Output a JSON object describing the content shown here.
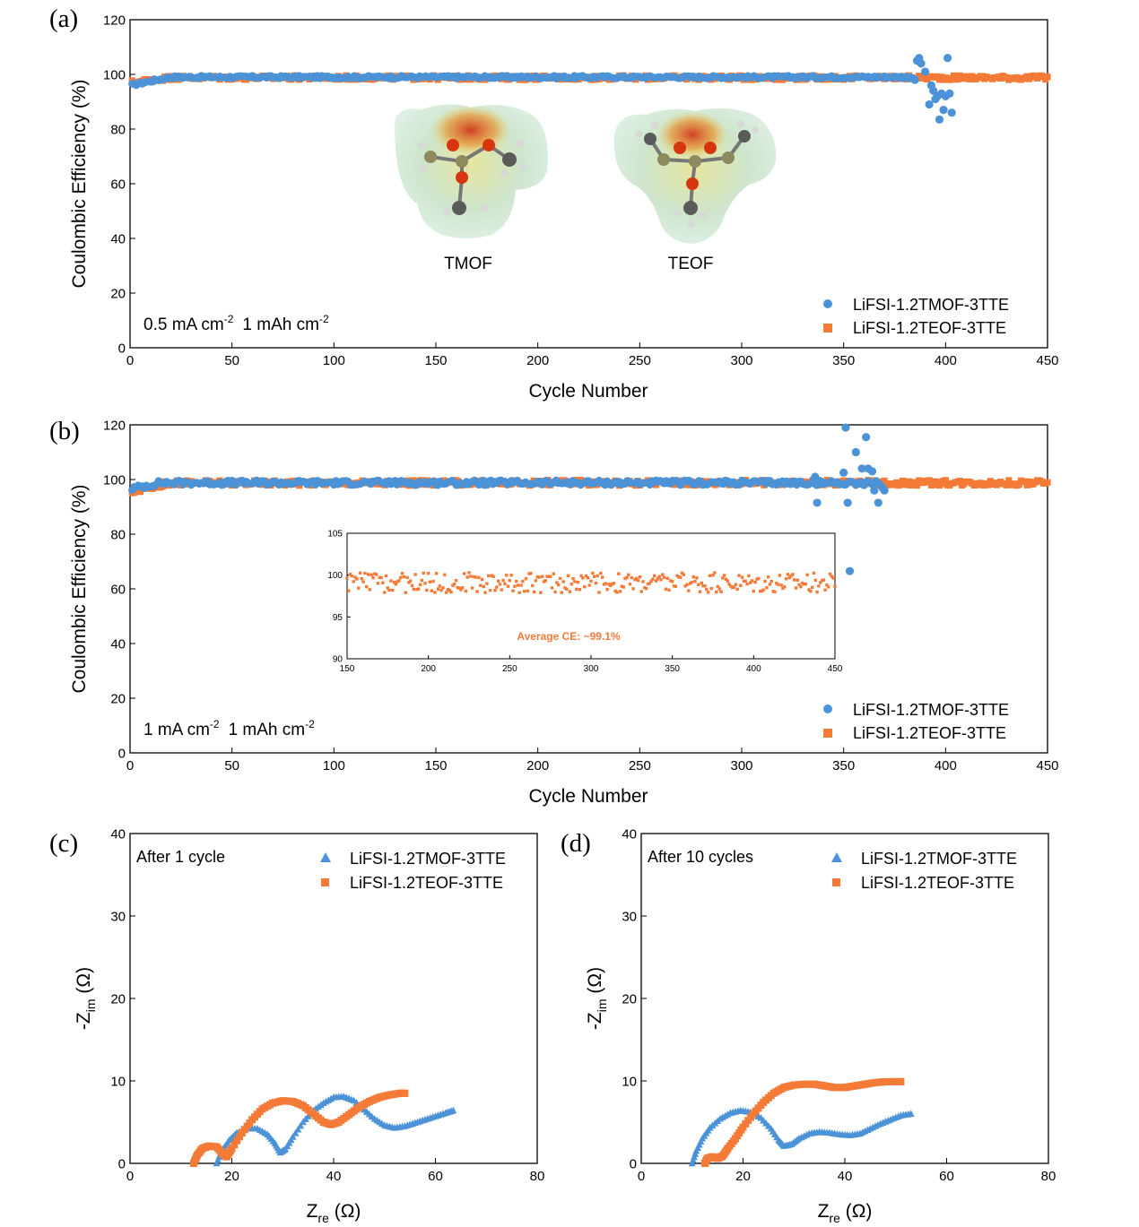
{
  "colors": {
    "blue": "#4b93d6",
    "orange": "#f47a38",
    "axis": "#000000"
  },
  "chart_data": [
    {
      "id": "a",
      "type": "scatter",
      "panel_label": "(a)",
      "xlabel": "Cycle Number",
      "ylabel": "Coulombic Efficiency (%)",
      "xlim": [
        0,
        450
      ],
      "ylim": [
        0,
        120
      ],
      "xticks": [
        "0",
        "50",
        "100",
        "150",
        "200",
        "250",
        "300",
        "350",
        "400",
        "450"
      ],
      "yticks": [
        "0",
        "20",
        "40",
        "60",
        "80",
        "100",
        "120"
      ],
      "condition": {
        "current": "0.5 mA cm",
        "current_exp": "-2",
        "capacity": "1 mAh cm",
        "capacity_exp": "-2"
      },
      "legend_position": "bottom-right",
      "molecules": [
        {
          "label": "TMOF"
        },
        {
          "label": "TEOF"
        }
      ],
      "series": [
        {
          "name": "LiFSI-1.2TMOF-3TTE",
          "marker": "circle",
          "color": "#4b93d6",
          "stable": {
            "x_range": [
              1,
              384
            ],
            "start_value": 96,
            "rise_to": 99.0,
            "rise_cycles": 20,
            "noise": 0.5
          },
          "points": [
            [
              385,
              98
            ],
            [
              386,
              105
            ],
            [
              387,
              106
            ],
            [
              388,
              104
            ],
            [
              390,
              101
            ],
            [
              392,
              89
            ],
            [
              393,
              96
            ],
            [
              394,
              94
            ],
            [
              395,
              91
            ],
            [
              396,
              92
            ],
            [
              397,
              83.5
            ],
            [
              398,
              93
            ],
            [
              399,
              87
            ],
            [
              400,
              92
            ],
            [
              401,
              106
            ],
            [
              402,
              93
            ],
            [
              403,
              86
            ]
          ]
        },
        {
          "name": "LiFSI-1.2TEOF-3TTE",
          "marker": "square",
          "color": "#f47a38",
          "stable": {
            "x_range": [
              1,
              450
            ],
            "start_value": 97,
            "rise_to": 98.8,
            "rise_cycles": 20,
            "noise": 0.8
          },
          "points": []
        }
      ]
    },
    {
      "id": "b",
      "type": "scatter",
      "panel_label": "(b)",
      "xlabel": "Cycle Number",
      "ylabel": "Coulombic Efficiency (%)",
      "xlim": [
        0,
        450
      ],
      "ylim": [
        0,
        120
      ],
      "xticks": [
        "0",
        "50",
        "100",
        "150",
        "200",
        "250",
        "300",
        "350",
        "400",
        "450"
      ],
      "yticks": [
        "0",
        "20",
        "40",
        "60",
        "80",
        "100",
        "120"
      ],
      "condition": {
        "current": "1 mA cm",
        "current_exp": "-2",
        "capacity": "1 mAh cm",
        "capacity_exp": "-2"
      },
      "legend_position": "bottom-right",
      "series": [
        {
          "name": "LiFSI-1.2TMOF-3TTE",
          "marker": "circle",
          "color": "#4b93d6",
          "stable": {
            "x_range": [
              1,
              368
            ],
            "start_value": 96.5,
            "rise_to": 98.8,
            "rise_cycles": 15,
            "noise": 0.9
          },
          "points": [
            [
              336,
              101
            ],
            [
              337,
              91.5
            ],
            [
              350,
              102.5
            ],
            [
              351,
              119
            ],
            [
              352,
              91.5
            ],
            [
              353,
              66.5
            ],
            [
              356,
              110
            ],
            [
              359,
              104
            ],
            [
              360,
              98
            ],
            [
              361,
              115.5
            ],
            [
              362,
              104
            ],
            [
              364,
              103
            ],
            [
              365,
              96
            ],
            [
              367,
              91.5
            ],
            [
              369,
              97
            ],
            [
              370,
              96
            ]
          ]
        },
        {
          "name": "LiFSI-1.2TEOF-3TTE",
          "marker": "square",
          "color": "#f47a38",
          "stable": {
            "x_range": [
              1,
              450
            ],
            "start_value": 95.5,
            "rise_to": 98.8,
            "rise_cycles": 20,
            "noise": 1.0
          },
          "points": []
        }
      ],
      "inset": {
        "type": "scatter",
        "xlim": [
          150,
          450
        ],
        "ylim": [
          90,
          105
        ],
        "xticks": [
          "150",
          "200",
          "250",
          "300",
          "350",
          "400",
          "450"
        ],
        "yticks": [
          "90",
          "95",
          "100",
          "105"
        ],
        "annotation": "Average CE: ~99.1%",
        "series": [
          {
            "name": "LiFSI-1.2TEOF-3TTE",
            "marker": "square",
            "color": "#f47a38",
            "x_range": [
              150,
              450
            ],
            "mean": 99.1,
            "spread": 1.2
          }
        ]
      }
    },
    {
      "id": "c",
      "type": "scatter",
      "panel_label": "(c)",
      "title": "After 1 cycle",
      "xlabel": "Z",
      "xlabel_sub": "re",
      "xlabel_unit": " (Ω)",
      "ylabel": "-Z",
      "ylabel_sub": "im",
      "ylabel_unit": " (Ω)",
      "xlim": [
        0,
        80
      ],
      "ylim": [
        0,
        40
      ],
      "xticks": [
        "0",
        "20",
        "40",
        "60",
        "80"
      ],
      "yticks": [
        "0",
        "10",
        "20",
        "30",
        "40"
      ],
      "legend_position": "top-right",
      "series": [
        {
          "name": "LiFSI-1.2TMOF-3TTE",
          "marker": "triangle",
          "color": "#4b93d6",
          "points": [
            [
              17,
              0
            ],
            [
              18,
              1.5
            ],
            [
              19.5,
              2.8
            ],
            [
              21,
              3.7
            ],
            [
              23,
              4.2
            ],
            [
              25,
              4.2
            ],
            [
              27,
              3.5
            ],
            [
              28.5,
              2.4
            ],
            [
              29.5,
              1.3
            ],
            [
              30.5,
              1.7
            ],
            [
              32,
              3.2
            ],
            [
              34,
              5.0
            ],
            [
              36,
              6.4
            ],
            [
              38,
              7.3
            ],
            [
              40,
              8.0
            ],
            [
              42,
              8.1
            ],
            [
              44,
              7.6
            ],
            [
              46,
              6.5
            ],
            [
              48,
              5.4
            ],
            [
              50,
              4.6
            ],
            [
              52,
              4.3
            ],
            [
              54,
              4.5
            ],
            [
              56,
              4.9
            ],
            [
              58,
              5.3
            ],
            [
              60,
              5.7
            ],
            [
              62,
              6.1
            ],
            [
              63.5,
              6.4
            ]
          ]
        },
        {
          "name": "LiFSI-1.2TEOF-3TTE",
          "marker": "square",
          "color": "#f47a38",
          "points": [
            [
              12.5,
              0
            ],
            [
              13.2,
              1.0
            ],
            [
              14.2,
              1.8
            ],
            [
              15.5,
              2.1
            ],
            [
              17,
              2.0
            ],
            [
              18.2,
              1.2
            ],
            [
              19,
              0.8
            ],
            [
              20,
              1.8
            ],
            [
              22,
              3.7
            ],
            [
              24,
              5.3
            ],
            [
              26,
              6.6
            ],
            [
              28,
              7.3
            ],
            [
              30,
              7.6
            ],
            [
              32,
              7.5
            ],
            [
              34,
              7.0
            ],
            [
              36,
              6.0
            ],
            [
              38,
              5.0
            ],
            [
              39.5,
              4.7
            ],
            [
              41,
              5.0
            ],
            [
              43,
              5.9
            ],
            [
              45,
              6.8
            ],
            [
              47,
              7.5
            ],
            [
              49,
              8.0
            ],
            [
              51,
              8.3
            ],
            [
              53,
              8.5
            ],
            [
              54,
              8.5
            ]
          ]
        }
      ]
    },
    {
      "id": "d",
      "type": "scatter",
      "panel_label": "(d)",
      "title": "After 10 cycles",
      "xlabel": "Z",
      "xlabel_sub": "re",
      "xlabel_unit": " (Ω)",
      "ylabel": "-Z",
      "ylabel_sub": "im",
      "ylabel_unit": " (Ω)",
      "xlim": [
        0,
        80
      ],
      "ylim": [
        0,
        40
      ],
      "xticks": [
        "0",
        "20",
        "40",
        "60",
        "80"
      ],
      "yticks": [
        "0",
        "10",
        "20",
        "30",
        "40"
      ],
      "legend_position": "top-right",
      "series": [
        {
          "name": "LiFSI-1.2TMOF-3TTE",
          "marker": "triangle",
          "color": "#4b93d6",
          "points": [
            [
              10,
              0
            ],
            [
              10.8,
              1.5
            ],
            [
              12,
              3.0
            ],
            [
              13.5,
              4.3
            ],
            [
              15.5,
              5.4
            ],
            [
              17.5,
              6.1
            ],
            [
              19.5,
              6.4
            ],
            [
              21.5,
              6.2
            ],
            [
              23.5,
              5.5
            ],
            [
              25.5,
              4.2
            ],
            [
              27,
              2.8
            ],
            [
              28,
              2.1
            ],
            [
              29.5,
              2.3
            ],
            [
              31,
              3.0
            ],
            [
              33,
              3.6
            ],
            [
              35,
              3.8
            ],
            [
              37,
              3.7
            ],
            [
              39,
              3.5
            ],
            [
              41,
              3.4
            ],
            [
              43,
              3.6
            ],
            [
              45,
              4.2
            ],
            [
              47,
              4.8
            ],
            [
              49,
              5.3
            ],
            [
              51,
              5.8
            ],
            [
              53,
              6.0
            ]
          ]
        },
        {
          "name": "LiFSI-1.2TEOF-3TTE",
          "marker": "square",
          "color": "#f47a38",
          "points": [
            [
              12.5,
              0
            ],
            [
              13,
              0.6
            ],
            [
              14,
              0.8
            ],
            [
              15,
              0.6
            ],
            [
              16,
              0.9
            ],
            [
              17,
              1.8
            ],
            [
              18.5,
              3.0
            ],
            [
              20,
              4.4
            ],
            [
              22,
              6.0
            ],
            [
              24,
              7.4
            ],
            [
              26,
              8.5
            ],
            [
              28,
              9.2
            ],
            [
              30,
              9.5
            ],
            [
              32,
              9.6
            ],
            [
              34,
              9.6
            ],
            [
              36,
              9.4
            ],
            [
              38,
              9.2
            ],
            [
              40,
              9.2
            ],
            [
              42,
              9.4
            ],
            [
              44,
              9.6
            ],
            [
              46,
              9.8
            ],
            [
              48,
              9.9
            ],
            [
              50,
              9.9
            ],
            [
              51,
              9.9
            ]
          ]
        }
      ]
    }
  ]
}
